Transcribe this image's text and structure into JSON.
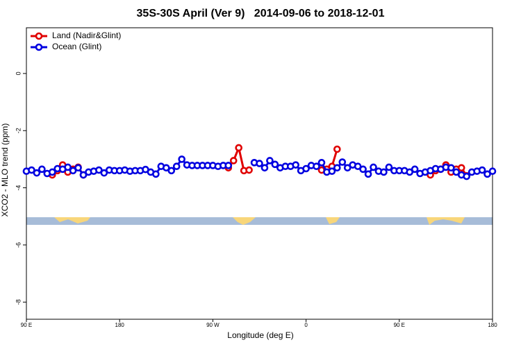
{
  "chart_data": {
    "type": "line",
    "title": "35S-30S April (Ver 9)   2014-09-06 to 2018-12-01",
    "x_label": "Longitude (deg E)",
    "y_label": "XCO2 - MLO trend (ppm)",
    "xlim": [
      90,
      540
    ],
    "ylim": [
      -8.6,
      1.6
    ],
    "xticks": [
      {
        "value": 90,
        "label": "90 E"
      },
      180,
      {
        "value": 270,
        "label": "90 W"
      },
      {
        "value": 360,
        "label": "0"
      },
      {
        "value": 450,
        "label": "90 E"
      },
      {
        "value": 540,
        "label": "180"
      }
    ],
    "yticks": [
      -8,
      -6,
      -4,
      -2,
      0
    ],
    "legend": "top-left",
    "x": [
      90,
      95,
      100,
      105,
      110,
      115,
      120,
      125,
      130,
      135,
      140,
      145,
      150,
      155,
      160,
      165,
      170,
      175,
      180,
      185,
      190,
      195,
      200,
      205,
      210,
      215,
      220,
      225,
      230,
      235,
      240,
      245,
      250,
      255,
      260,
      265,
      270,
      275,
      280,
      285,
      290,
      295,
      300,
      305,
      310,
      315,
      320,
      325,
      330,
      335,
      340,
      345,
      350,
      355,
      360,
      365,
      370,
      375,
      380,
      385,
      390,
      395,
      400,
      405,
      410,
      415,
      420,
      425,
      430,
      435,
      440,
      445,
      450,
      455,
      460,
      465,
      470,
      475,
      480,
      485,
      490,
      495,
      500,
      505,
      510,
      515,
      520,
      525,
      530,
      535,
      540
    ],
    "series": [
      {
        "name": "Land (Nadir&Glint)",
        "color": "#e00000",
        "values": [
          null,
          null,
          null,
          null,
          null,
          -3.55,
          -3.4,
          -3.2,
          -3.45,
          -3.35,
          -3.28,
          -3.55,
          null,
          null,
          null,
          null,
          null,
          null,
          null,
          null,
          null,
          null,
          null,
          null,
          null,
          null,
          null,
          null,
          null,
          null,
          null,
          null,
          null,
          null,
          null,
          null,
          null,
          null,
          null,
          -3.3,
          -3.05,
          -2.6,
          -3.4,
          -3.38,
          null,
          null,
          null,
          null,
          null,
          null,
          null,
          null,
          null,
          null,
          null,
          null,
          null,
          -3.38,
          -3.35,
          -3.25,
          -2.65,
          null,
          null,
          null,
          null,
          null,
          null,
          null,
          null,
          null,
          null,
          null,
          null,
          null,
          null,
          null,
          null,
          null,
          -3.55,
          -3.4,
          -3.35,
          -3.2,
          -3.45,
          -3.35,
          -3.3,
          -3.58,
          null,
          null,
          null,
          null,
          null
        ]
      },
      {
        "name": "Ocean (Glint)",
        "color": "#0000e0",
        "values": [
          -3.42,
          -3.38,
          -3.48,
          -3.35,
          -3.5,
          -3.45,
          -3.33,
          -3.35,
          -3.28,
          -3.4,
          -3.3,
          -3.55,
          -3.45,
          -3.42,
          -3.38,
          -3.48,
          -3.38,
          -3.4,
          -3.4,
          -3.38,
          -3.42,
          -3.4,
          -3.4,
          -3.36,
          -3.45,
          -3.52,
          -3.25,
          -3.3,
          -3.4,
          -3.25,
          -3.0,
          -3.2,
          -3.22,
          -3.22,
          -3.22,
          -3.22,
          -3.22,
          -3.25,
          -3.22,
          -3.22,
          null,
          null,
          null,
          null,
          -3.12,
          -3.15,
          -3.3,
          -3.05,
          -3.18,
          -3.3,
          -3.25,
          -3.25,
          -3.2,
          -3.4,
          -3.33,
          -3.22,
          -3.25,
          -3.12,
          -3.45,
          -3.42,
          -3.3,
          -3.1,
          -3.3,
          -3.2,
          -3.25,
          -3.35,
          -3.52,
          -3.28,
          -3.42,
          -3.45,
          -3.28,
          -3.4,
          -3.4,
          -3.4,
          -3.45,
          -3.35,
          -3.5,
          -3.45,
          -3.4,
          -3.33,
          -3.35,
          -3.28,
          -3.3,
          -3.45,
          -3.55,
          -3.6,
          -3.45,
          -3.42,
          -3.38,
          -3.52,
          -3.42
        ]
      }
    ]
  }
}
